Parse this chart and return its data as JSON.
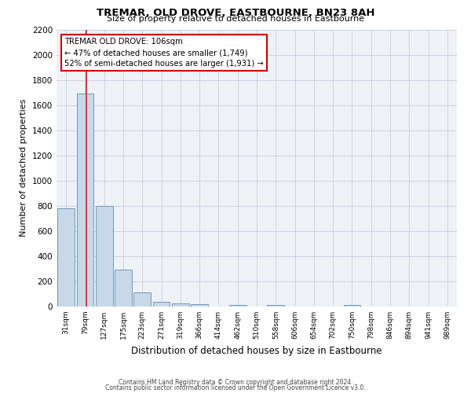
{
  "title": "TREMAR, OLD DROVE, EASTBOURNE, BN23 8AH",
  "subtitle": "Size of property relative to detached houses in Eastbourne",
  "xlabel": "Distribution of detached houses by size in Eastbourne",
  "ylabel": "Number of detached properties",
  "footer_line1": "Contains HM Land Registry data © Crown copyright and database right 2024.",
  "footer_line2": "Contains public sector information licensed under the Open Government Licence v3.0.",
  "categories": [
    "31sqm",
    "79sqm",
    "127sqm",
    "175sqm",
    "223sqm",
    "271sqm",
    "319sqm",
    "366sqm",
    "414sqm",
    "462sqm",
    "510sqm",
    "558sqm",
    "606sqm",
    "654sqm",
    "702sqm",
    "750sqm",
    "798sqm",
    "846sqm",
    "894sqm",
    "941sqm",
    "989sqm"
  ],
  "values": [
    780,
    1690,
    800,
    295,
    110,
    35,
    28,
    20,
    0,
    15,
    0,
    12,
    0,
    0,
    0,
    10,
    0,
    0,
    0,
    0,
    0
  ],
  "bar_color": "#c8d8e8",
  "bar_edge_color": "#7098b8",
  "ylim": [
    0,
    2200
  ],
  "yticks": [
    0,
    200,
    400,
    600,
    800,
    1000,
    1200,
    1400,
    1600,
    1800,
    2000,
    2200
  ],
  "annotation_title": "TREMAR OLD DROVE: 106sqm",
  "annotation_line1": "← 47% of detached houses are smaller (1,749)",
  "annotation_line2": "52% of semi-detached houses are larger (1,931) →",
  "annotation_box_color": "#ffffff",
  "annotation_border_color": "#cc0000",
  "bg_color": "#eef2f7"
}
